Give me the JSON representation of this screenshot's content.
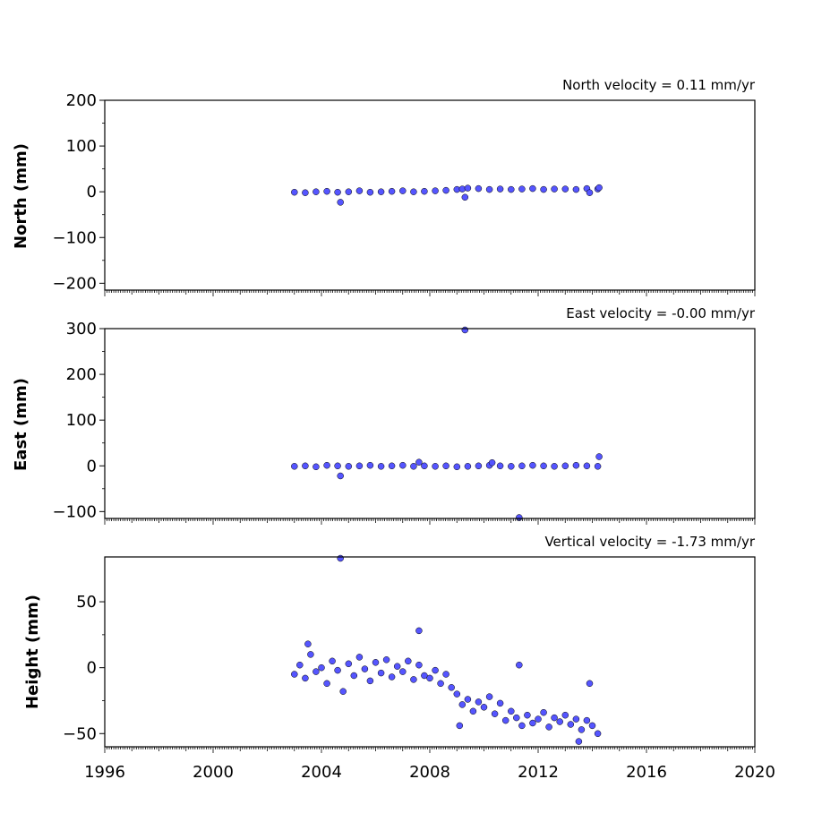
{
  "chart_data": [
    {
      "type": "scatter",
      "title": "North velocity = 0.11 mm/yr",
      "xlabel": "",
      "ylabel": "North (mm)",
      "xlim": [
        1996,
        2020
      ],
      "ylim": [
        -215,
        200
      ],
      "yticks": [
        200,
        100,
        0,
        -100,
        -200
      ],
      "ytick_labels": [
        "200",
        "100",
        "0",
        "−100",
        "−200"
      ],
      "marker_color": "#5555ff",
      "series": [
        {
          "x": [
            2003.0,
            2003.4,
            2003.8,
            2004.2,
            2004.6,
            2005.0,
            2005.4,
            2005.8,
            2006.2,
            2006.6,
            2007.0,
            2007.4,
            2007.8,
            2008.2,
            2008.6,
            2009.0,
            2009.2,
            2009.4,
            2009.8,
            2010.2,
            2010.6,
            2011.0,
            2011.4,
            2011.8,
            2012.2,
            2012.6,
            2013.0,
            2013.4,
            2013.8,
            2014.2,
            2004.7,
            2009.3,
            2013.9,
            2014.25
          ],
          "y": [
            -1,
            -2,
            0,
            1,
            -1,
            0,
            2,
            -1,
            0,
            1,
            2,
            0,
            1,
            2,
            3,
            5,
            6,
            8,
            7,
            5,
            6,
            5,
            6,
            7,
            5,
            6,
            6,
            5,
            7,
            6,
            -23,
            -12,
            -2,
            9
          ]
        }
      ]
    },
    {
      "type": "scatter",
      "title": "East velocity = -0.00 mm/yr",
      "xlabel": "",
      "ylabel": "East (mm)",
      "xlim": [
        1996,
        2020
      ],
      "ylim": [
        -115,
        300
      ],
      "yticks": [
        300,
        200,
        100,
        0,
        -100
      ],
      "ytick_labels": [
        "300",
        "200",
        "100",
        "0",
        "−100"
      ],
      "marker_color": "#5555ff",
      "series": [
        {
          "x": [
            2003.0,
            2003.4,
            2003.8,
            2004.2,
            2004.6,
            2005.0,
            2005.4,
            2005.8,
            2006.2,
            2006.6,
            2007.0,
            2007.4,
            2007.8,
            2008.2,
            2008.6,
            2009.0,
            2009.4,
            2009.8,
            2010.2,
            2010.6,
            2011.0,
            2011.4,
            2011.8,
            2012.2,
            2012.6,
            2013.0,
            2013.4,
            2013.8,
            2014.2,
            2004.7,
            2009.3,
            2011.3,
            2014.25,
            2007.6,
            2010.3
          ],
          "y": [
            -1,
            0,
            -2,
            1,
            0,
            -1,
            0,
            1,
            -1,
            0,
            1,
            -1,
            0,
            -1,
            0,
            -2,
            -1,
            0,
            1,
            0,
            -1,
            0,
            1,
            0,
            -1,
            0,
            1,
            0,
            -1,
            -22,
            297,
            -113,
            20,
            8,
            7
          ]
        }
      ]
    },
    {
      "type": "scatter",
      "title": "Vertical velocity = -1.73 mm/yr",
      "xlabel": "",
      "ylabel": "Height (mm)",
      "xlim": [
        1996,
        2020
      ],
      "ylim": [
        -60,
        84
      ],
      "yticks": [
        50,
        0,
        -50
      ],
      "ytick_labels": [
        "50",
        "0",
        "−50"
      ],
      "xticks": [
        1996,
        2000,
        2004,
        2008,
        2012,
        2016,
        2020
      ],
      "xtick_labels": [
        "1996",
        "2000",
        "2004",
        "2008",
        "2012",
        "2016",
        "2020"
      ],
      "marker_color": "#5555ff",
      "series": [
        {
          "x": [
            2003.0,
            2003.2,
            2003.4,
            2003.6,
            2003.8,
            2004.0,
            2004.2,
            2004.4,
            2004.6,
            2004.8,
            2005.0,
            2005.2,
            2005.4,
            2005.6,
            2005.8,
            2006.0,
            2006.2,
            2006.4,
            2006.6,
            2006.8,
            2007.0,
            2007.2,
            2007.4,
            2007.6,
            2007.8,
            2008.0,
            2008.2,
            2008.4,
            2008.6,
            2008.8,
            2009.0,
            2009.2,
            2009.4,
            2009.6,
            2009.8,
            2010.0,
            2010.2,
            2010.4,
            2010.6,
            2010.8,
            2011.0,
            2011.2,
            2011.4,
            2011.6,
            2011.8,
            2012.0,
            2012.2,
            2012.4,
            2012.6,
            2012.8,
            2013.0,
            2013.2,
            2013.4,
            2013.6,
            2013.8,
            2014.0,
            2014.2,
            2004.7,
            2007.6,
            2011.3,
            2003.5,
            2013.9,
            2013.5,
            2009.1
          ],
          "y": [
            -5,
            2,
            -8,
            10,
            -3,
            0,
            -12,
            5,
            -2,
            -18,
            3,
            -6,
            8,
            -1,
            -10,
            4,
            -4,
            6,
            -7,
            1,
            -3,
            5,
            -9,
            2,
            -6,
            -8,
            -2,
            -12,
            -5,
            -15,
            -20,
            -28,
            -24,
            -33,
            -26,
            -30,
            -22,
            -35,
            -27,
            -40,
            -33,
            -38,
            -44,
            -36,
            -42,
            -39,
            -34,
            -45,
            -38,
            -41,
            -36,
            -43,
            -39,
            -47,
            -40,
            -44,
            -50,
            83,
            28,
            2,
            18,
            -12,
            -56,
            -44
          ]
        }
      ]
    }
  ]
}
